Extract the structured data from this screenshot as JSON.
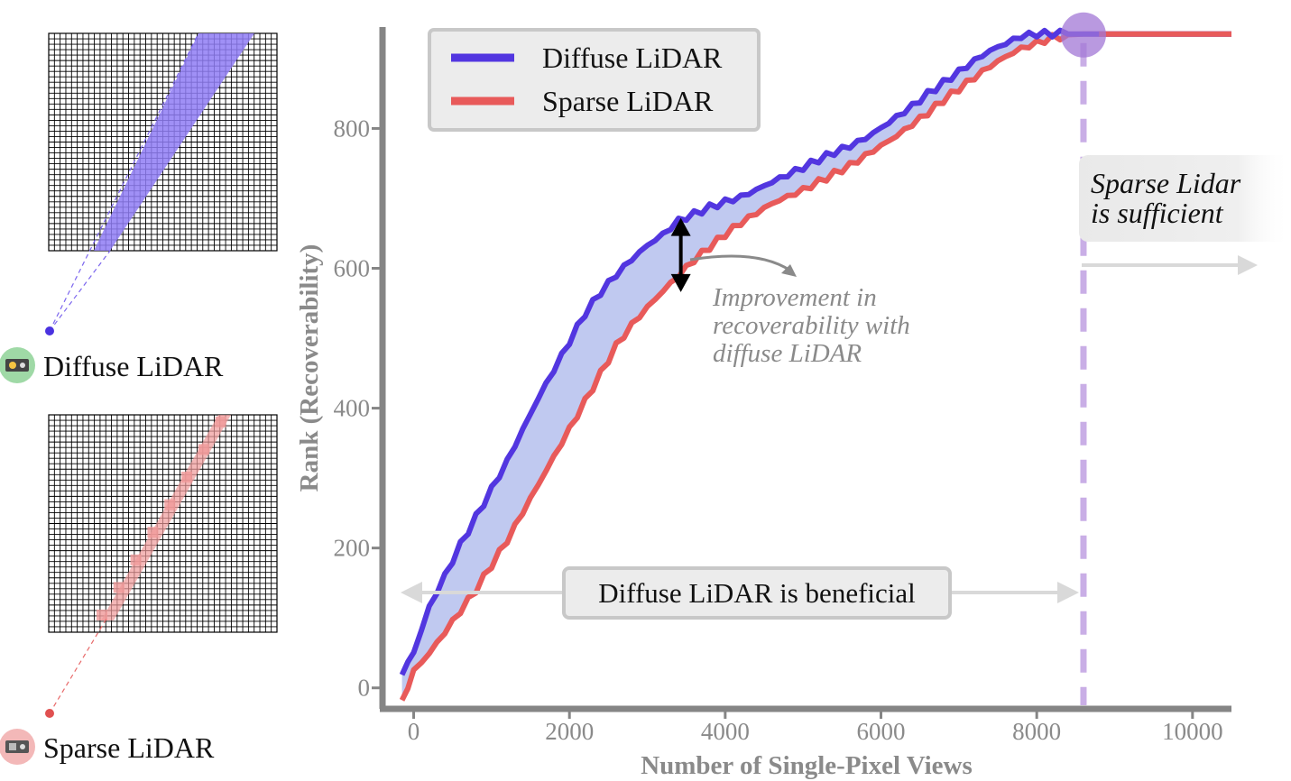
{
  "chart_data": {
    "type": "line",
    "xlabel": "Number of Single-Pixel Views",
    "ylabel": "Rank (Recoverability)",
    "xlim": [
      -400,
      10500
    ],
    "ylim": [
      -30,
      945
    ],
    "xticks": [
      0,
      2000,
      4000,
      6000,
      8000,
      10000
    ],
    "yticks": [
      0,
      200,
      400,
      600,
      800
    ],
    "grid": false,
    "legend_position": "top-left",
    "x": [
      -150,
      0,
      200,
      400,
      600,
      800,
      1000,
      1200,
      1400,
      1600,
      1800,
      2000,
      2200,
      2400,
      2600,
      2800,
      3000,
      3200,
      3400,
      3600,
      3800,
      4000,
      4200,
      4400,
      4600,
      4800,
      5000,
      5200,
      5400,
      5600,
      5800,
      6000,
      6200,
      6400,
      6600,
      6800,
      7000,
      7200,
      7400,
      7600,
      7800,
      8000,
      8200,
      8400,
      8600,
      8800,
      9000,
      9500,
      10000,
      10500
    ],
    "series": [
      {
        "name": "Diffuse LiDAR",
        "color": "#5236e0",
        "values": [
          20,
          50,
          115,
          160,
          205,
          245,
          285,
          325,
          370,
          415,
          455,
          495,
          535,
          565,
          590,
          612,
          632,
          648,
          668,
          678,
          688,
          696,
          703,
          713,
          724,
          734,
          744,
          755,
          765,
          774,
          785,
          800,
          816,
          832,
          850,
          866,
          882,
          898,
          912,
          922,
          932,
          935,
          935,
          935,
          935,
          935,
          935,
          935,
          935,
          935
        ]
      },
      {
        "name": "Sparse LiDAR",
        "color": "#e85a5a",
        "values": [
          -20,
          25,
          50,
          80,
          110,
          140,
          175,
          210,
          250,
          290,
          330,
          370,
          410,
          450,
          490,
          520,
          545,
          568,
          590,
          612,
          630,
          648,
          664,
          678,
          692,
          702,
          712,
          724,
          736,
          748,
          762,
          776,
          790,
          806,
          822,
          840,
          856,
          872,
          888,
          902,
          914,
          922,
          930,
          934,
          935,
          935,
          935,
          935,
          935,
          935
        ]
      }
    ],
    "marker_x": 8600,
    "highlight_point": [
      8600,
      935
    ],
    "annotations": {
      "improvement": "Improvement in recoverability with diffuse LiDAR",
      "improvement_lines": [
        "Improvement in",
        "recoverability with",
        "diffuse LiDAR"
      ],
      "sufficient_lines": [
        "Sparse Lidar",
        "is sufficient"
      ],
      "beneficial": "Diffuse LiDAR is beneficial"
    }
  },
  "side_panels": {
    "diffuse_label": "Diffuse LiDAR",
    "sparse_label": "Sparse LiDAR",
    "diffuse_color": "#8f7cf5",
    "sparse_color": "#f09a9a",
    "sensor_diffuse_bg": "#9fd9a6",
    "sensor_sparse_bg": "#f3b8b8"
  }
}
